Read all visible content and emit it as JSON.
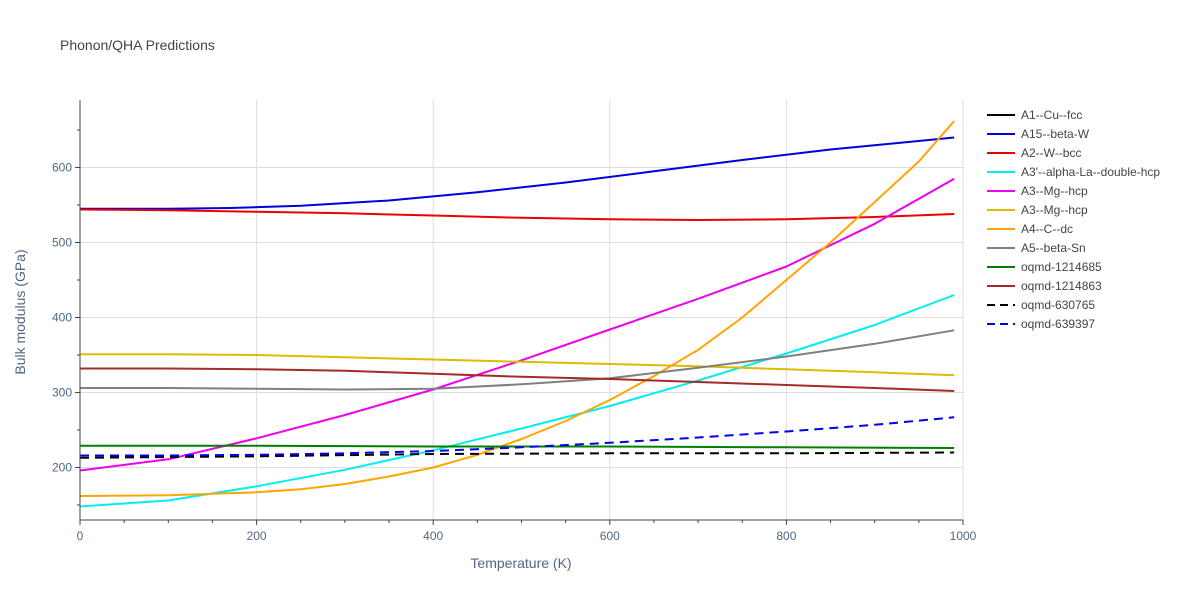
{
  "chart_data": {
    "type": "line",
    "title": "Phonon/QHA Predictions",
    "xlabel": "Temperature (K)",
    "ylabel": "Bulk modulus (GPa)",
    "xlim": [
      0,
      1000
    ],
    "ylim": [
      130,
      690
    ],
    "xticks": [
      0,
      200,
      400,
      600,
      800,
      1000
    ],
    "yticks": [
      200,
      300,
      400,
      500,
      600
    ],
    "grid": true,
    "legend_position": "right",
    "series": [
      {
        "name": "A1--Cu--fcc",
        "color": "#000000",
        "dash": "solid",
        "visible": false,
        "x": [],
        "y": []
      },
      {
        "name": "A15--beta-W",
        "color": "#0000dd",
        "dash": "solid",
        "x": [
          0,
          100,
          170,
          250,
          350,
          450,
          550,
          650,
          750,
          850,
          990
        ],
        "y": [
          545,
          545,
          546,
          549,
          556,
          567,
          580,
          595,
          610,
          624,
          640
        ]
      },
      {
        "name": "A2--W--bcc",
        "color": "#ee0000",
        "dash": "solid",
        "x": [
          0,
          100,
          200,
          300,
          400,
          500,
          600,
          700,
          800,
          900,
          990
        ],
        "y": [
          544,
          543,
          541,
          539,
          536,
          533,
          531,
          530,
          531,
          534,
          538
        ]
      },
      {
        "name": "A3'--alpha-La--double-hcp",
        "color": "#00eeee",
        "dash": "solid",
        "x": [
          0,
          100,
          200,
          300,
          400,
          500,
          600,
          700,
          800,
          900,
          990
        ],
        "y": [
          148,
          156,
          175,
          197,
          223,
          252,
          282,
          316,
          352,
          390,
          430
        ]
      },
      {
        "name": "A3--Mg--hcp",
        "color": "#ee00ee",
        "dash": "solid",
        "x": [
          0,
          100,
          200,
          300,
          400,
          500,
          600,
          700,
          800,
          900,
          990
        ],
        "y": [
          196,
          211,
          239,
          270,
          304,
          343,
          384,
          425,
          468,
          525,
          585
        ]
      },
      {
        "name": "A3--Mg--hcp",
        "color": "#ddbb00",
        "dash": "solid",
        "x": [
          0,
          100,
          200,
          300,
          400,
          500,
          600,
          700,
          800,
          900,
          990
        ],
        "y": [
          351,
          351,
          350,
          347,
          344,
          341,
          338,
          335,
          331,
          327,
          323
        ]
      },
      {
        "name": "A4--C--dc",
        "color": "#ffa500",
        "dash": "solid",
        "x": [
          0,
          100,
          200,
          250,
          300,
          350,
          400,
          450,
          500,
          550,
          600,
          650,
          700,
          750,
          800,
          850,
          900,
          950,
          990
        ],
        "y": [
          162,
          163,
          167,
          171,
          178,
          188,
          200,
          217,
          238,
          262,
          290,
          322,
          357,
          400,
          450,
          500,
          554,
          608,
          662
        ]
      },
      {
        "name": "A5--beta-Sn",
        "color": "#808080",
        "dash": "solid",
        "x": [
          0,
          100,
          200,
          300,
          400,
          500,
          600,
          700,
          800,
          900,
          990
        ],
        "y": [
          306,
          306,
          305,
          304,
          305,
          311,
          319,
          333,
          348,
          365,
          383
        ]
      },
      {
        "name": "oqmd-1214685",
        "color": "#008000",
        "dash": "solid",
        "x": [
          0,
          200,
          400,
          600,
          800,
          990
        ],
        "y": [
          229,
          229,
          228,
          228,
          227,
          226
        ]
      },
      {
        "name": "oqmd-1214863",
        "color": "#a52a2a",
        "dash": "solid",
        "x": [
          0,
          100,
          200,
          300,
          400,
          500,
          600,
          700,
          800,
          900,
          990
        ],
        "y": [
          332,
          332,
          331,
          329,
          325,
          321,
          318,
          314,
          310,
          306,
          302
        ]
      },
      {
        "name": "oqmd-630765",
        "color": "#000000",
        "dash": "dash",
        "x": [
          0,
          200,
          400,
          600,
          800,
          990
        ],
        "y": [
          213,
          215,
          218,
          219,
          219,
          220
        ]
      },
      {
        "name": "oqmd-639397",
        "color": "#0000ee",
        "dash": "dash",
        "x": [
          0,
          100,
          200,
          300,
          400,
          500,
          600,
          700,
          800,
          900,
          990
        ],
        "y": [
          216,
          216,
          217,
          219,
          222,
          227,
          233,
          240,
          248,
          257,
          267
        ]
      }
    ]
  }
}
